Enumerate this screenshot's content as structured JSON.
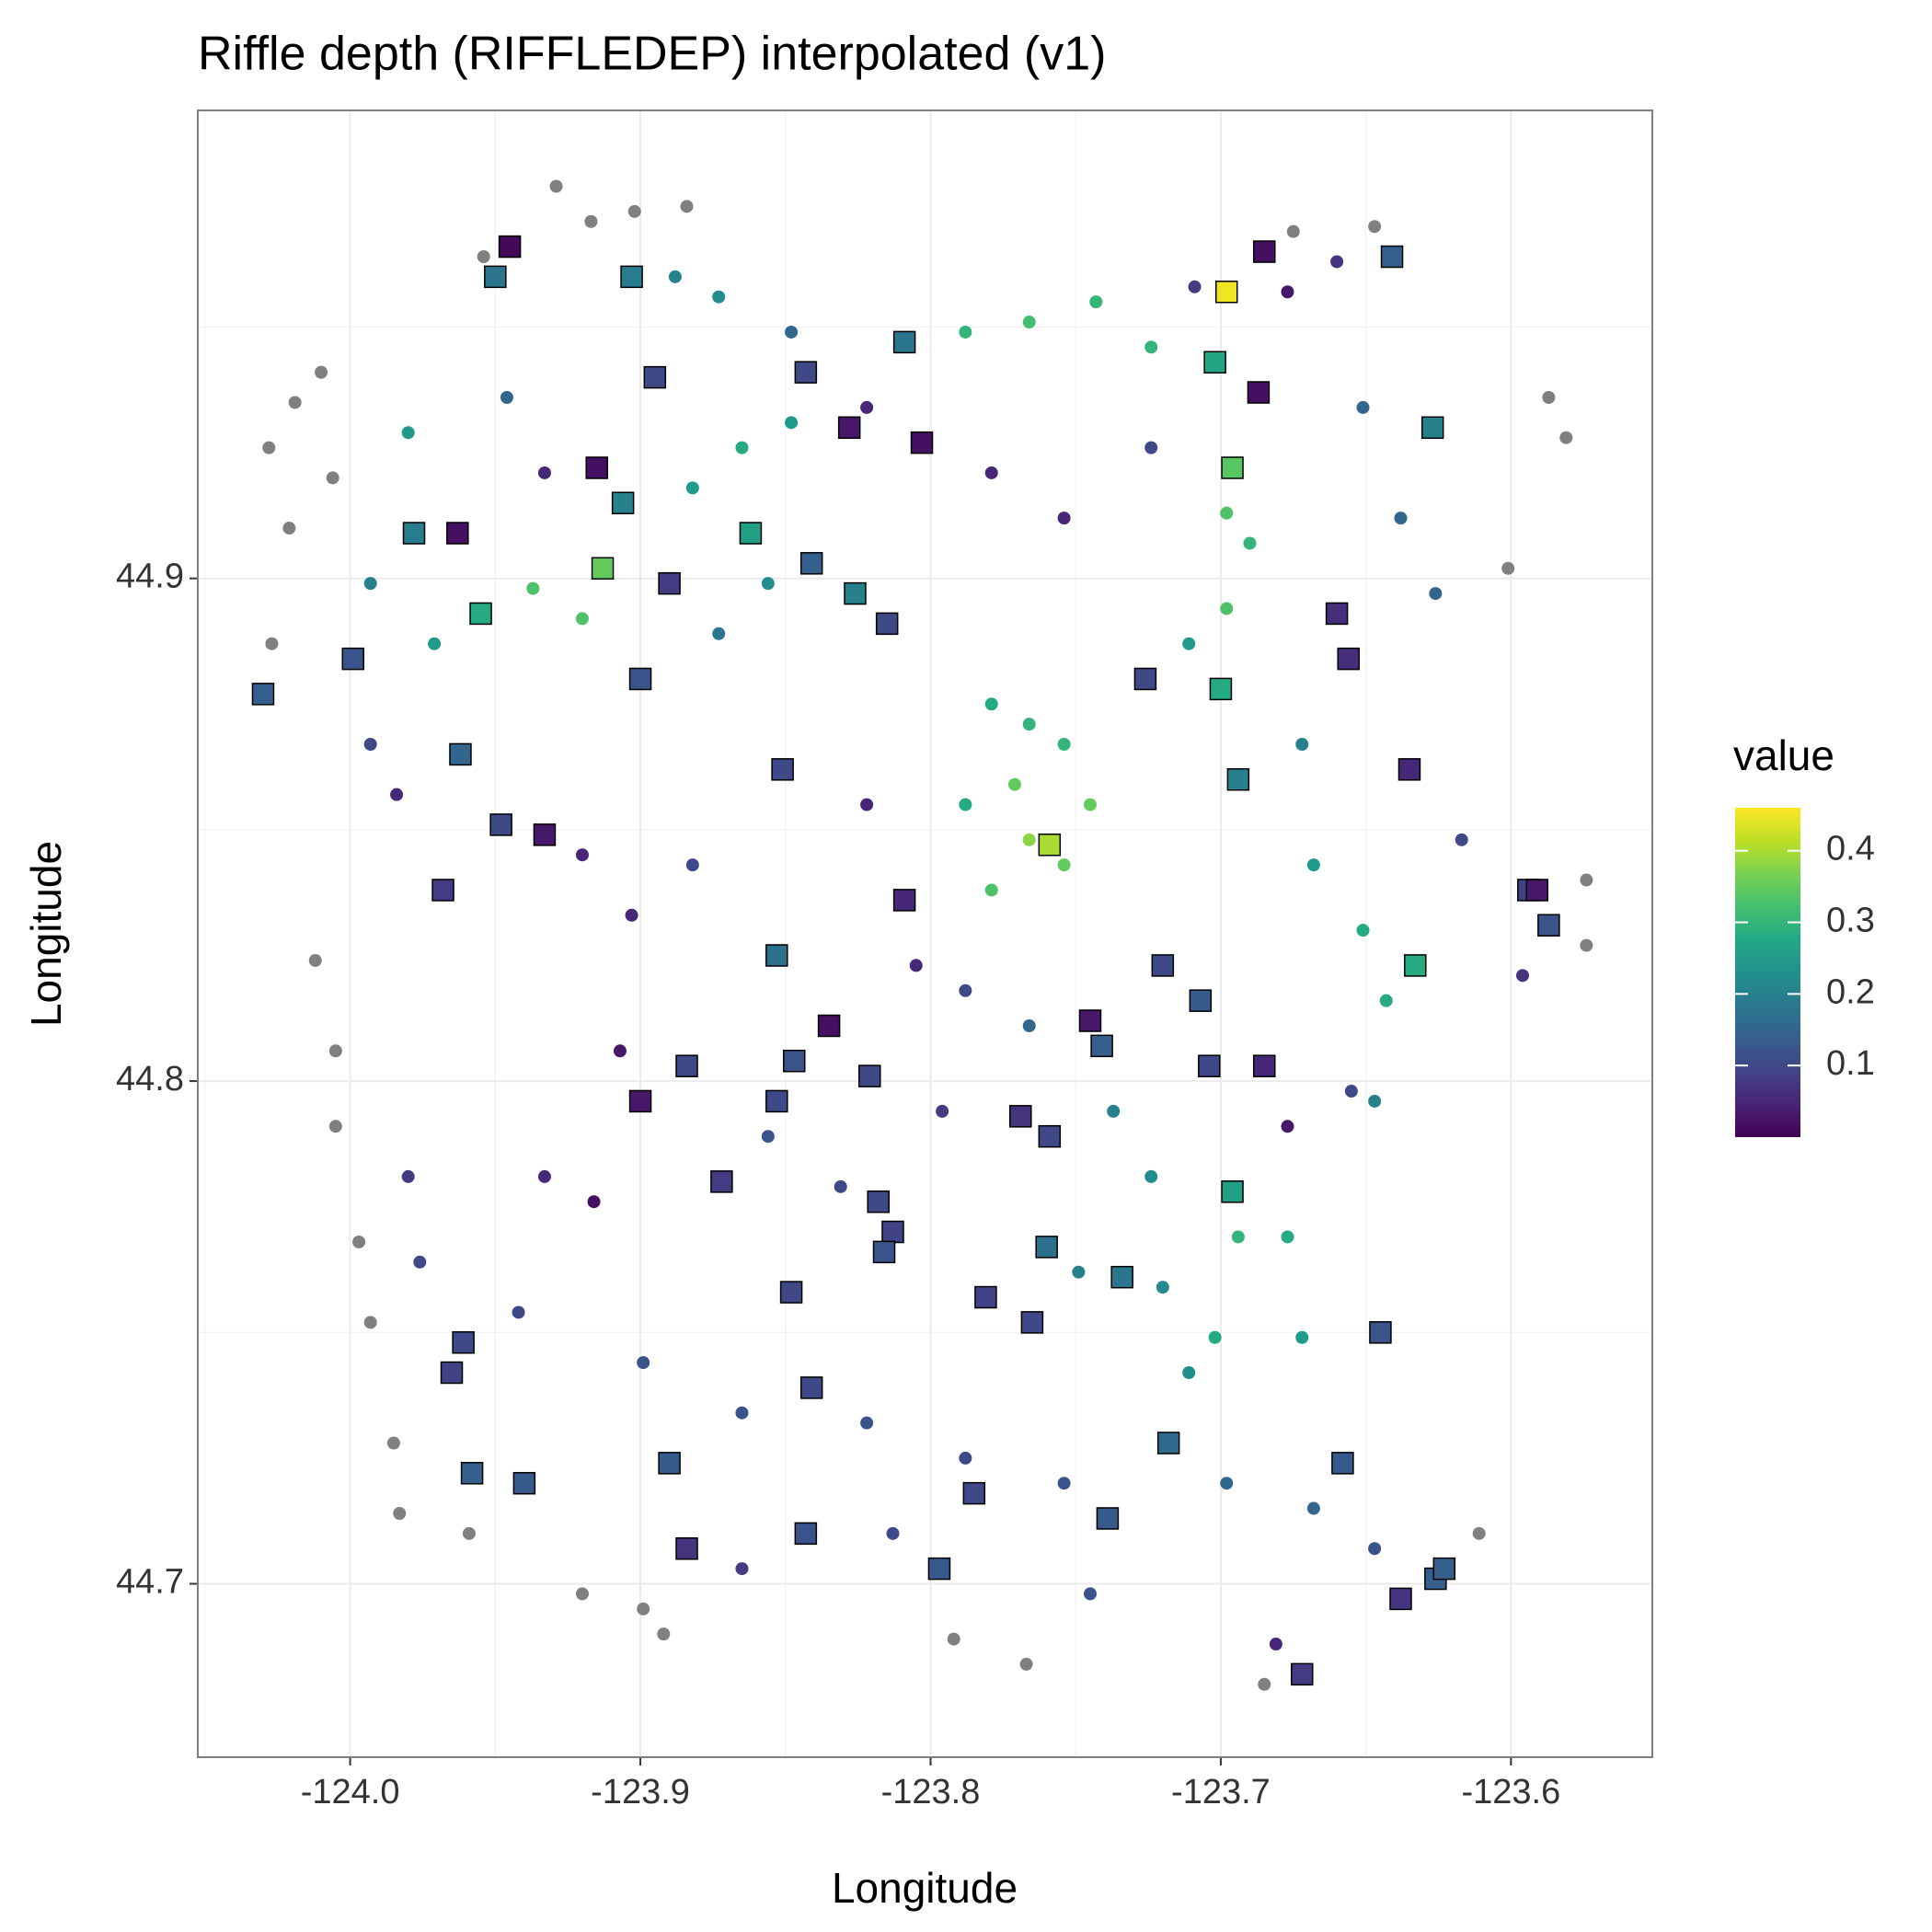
{
  "chart_data": {
    "type": "scatter",
    "title": "Riffle depth (RIFFLEDEP) interpolated (v1)",
    "x_label": "Longitude",
    "y_label": "Longitude",
    "xlim": [
      -124.0525,
      -123.5513
    ],
    "ylim": [
      44.6655,
      44.9931
    ],
    "xticks": [
      {
        "value": -124,
        "label": "-124.0"
      },
      -123.9,
      -123.8,
      -123.7,
      -123.6
    ],
    "yticks": [
      44.7,
      44.8,
      44.9
    ],
    "grid": true,
    "colormap": "viridis",
    "na_color": "#808080",
    "colorlim": [
      0,
      0.46
    ],
    "colorbar_title": "value",
    "colorbar_ticks": [
      0.1,
      0.2,
      0.3,
      0.4
    ],
    "points": {
      "x": [
        -123.929,
        -123.917,
        -123.902,
        -123.884,
        -123.954,
        -124.01,
        -124.019,
        -124.028,
        -124.006,
        -124.021,
        -124.027,
        -124.012,
        -124.005,
        -124.005,
        -123.997,
        -123.993,
        -123.985,
        -123.983,
        -123.959,
        -123.92,
        -123.899,
        -123.892,
        -123.792,
        -123.767,
        -123.675,
        -123.647,
        -123.611,
        -123.587,
        -123.581,
        -123.601,
        -123.574,
        -123.574,
        -123.685,
        -123.888,
        -123.873,
        -123.848,
        -123.788,
        -123.766,
        -123.743,
        -123.724,
        -123.709,
        -123.677,
        -123.66,
        -123.848,
        -123.865,
        -123.882,
        -123.822,
        -123.779,
        -123.754,
        -123.724,
        -123.698,
        -123.69,
        -123.651,
        -123.638,
        -123.626,
        -123.937,
        -123.92,
        -123.971,
        -123.993,
        -123.98,
        -123.946,
        -123.933,
        -123.856,
        -123.873,
        -123.779,
        -123.766,
        -123.754,
        -123.771,
        -123.745,
        -123.766,
        -123.779,
        -123.754,
        -123.788,
        -123.698,
        -123.711,
        -123.672,
        -123.668,
        -123.651,
        -123.643,
        -123.617,
        -123.596,
        -123.993,
        -123.984,
        -123.92,
        -123.903,
        -123.882,
        -123.822,
        -123.805,
        -123.788,
        -123.766,
        -123.737,
        -123.724,
        -123.694,
        -123.677,
        -123.702,
        -123.711,
        -123.672,
        -123.749,
        -123.72,
        -123.933,
        -123.916,
        -123.907,
        -123.856,
        -123.831,
        -123.98,
        -123.976,
        -123.942,
        -123.899,
        -123.865,
        -123.822,
        -123.788,
        -123.754,
        -123.698,
        -123.668,
        -123.647,
        -123.681,
        -123.745,
        -123.813,
        -123.865,
        -123.655,
        -123.647,
        -123.677,
        -123.796
      ],
      "y": [
        44.978,
        44.971,
        44.973,
        44.974,
        44.964,
        44.941,
        44.935,
        44.926,
        44.92,
        44.91,
        44.887,
        44.824,
        44.806,
        44.791,
        44.768,
        44.752,
        44.728,
        44.714,
        44.71,
        44.698,
        44.695,
        44.69,
        44.689,
        44.684,
        44.969,
        44.97,
        44.71,
        44.936,
        44.928,
        44.902,
        44.84,
        44.827,
        44.68,
        44.96,
        44.956,
        44.949,
        44.949,
        44.951,
        44.955,
        44.946,
        44.958,
        44.957,
        44.963,
        44.931,
        44.926,
        44.918,
        44.934,
        44.921,
        44.912,
        44.926,
        44.913,
        44.907,
        44.934,
        44.912,
        44.897,
        44.898,
        44.892,
        44.887,
        44.899,
        44.929,
        44.936,
        44.921,
        44.899,
        44.889,
        44.875,
        44.871,
        44.867,
        44.859,
        44.855,
        44.848,
        44.838,
        44.843,
        44.855,
        44.894,
        44.887,
        44.867,
        44.843,
        44.83,
        44.816,
        44.848,
        44.821,
        44.867,
        44.857,
        44.845,
        44.833,
        44.843,
        44.855,
        44.823,
        44.818,
        44.811,
        44.794,
        44.781,
        44.769,
        44.769,
        44.749,
        44.742,
        44.749,
        44.762,
        44.759,
        44.781,
        44.776,
        44.806,
        44.789,
        44.779,
        44.781,
        44.764,
        44.754,
        44.744,
        44.734,
        44.732,
        44.725,
        44.72,
        44.72,
        44.715,
        44.707,
        44.688,
        44.698,
        44.71,
        44.703,
        44.798,
        44.796,
        44.791,
        44.794
      ],
      "values": [
        null,
        null,
        null,
        null,
        null,
        null,
        null,
        null,
        null,
        null,
        null,
        null,
        null,
        null,
        null,
        null,
        null,
        null,
        null,
        null,
        null,
        null,
        null,
        null,
        null,
        null,
        null,
        null,
        null,
        null,
        null,
        null,
        null,
        0.2,
        0.22,
        0.15,
        0.3,
        0.32,
        0.3,
        0.3,
        0.08,
        0.03,
        0.07,
        0.25,
        0.28,
        0.25,
        0.05,
        0.05,
        0.05,
        0.1,
        0.33,
        0.3,
        0.15,
        0.15,
        0.15,
        0.33,
        0.33,
        0.25,
        0.2,
        0.25,
        0.15,
        0.05,
        0.22,
        0.18,
        0.28,
        0.3,
        0.3,
        0.35,
        0.35,
        0.38,
        0.33,
        0.35,
        0.28,
        0.33,
        0.25,
        0.2,
        0.25,
        0.28,
        0.28,
        0.1,
        0.07,
        0.1,
        0.05,
        0.05,
        0.05,
        0.1,
        0.05,
        0.05,
        0.1,
        0.15,
        0.2,
        0.22,
        0.3,
        0.28,
        0.28,
        0.22,
        0.25,
        0.2,
        0.22,
        0.05,
        0.02,
        0.03,
        0.12,
        0.1,
        0.08,
        0.1,
        0.1,
        0.12,
        0.12,
        0.12,
        0.1,
        0.12,
        0.15,
        0.15,
        0.12,
        0.05,
        0.12,
        0.1,
        0.08,
        0.1,
        0.2,
        0.03,
        0.08
      ]
    },
    "sites": {
      "x": [
        -123.945,
        -123.95,
        -123.903,
        -123.895,
        -123.843,
        -123.809,
        -123.828,
        -123.803,
        -123.915,
        -123.906,
        -123.862,
        -123.978,
        -123.963,
        -123.913,
        -123.89,
        -123.841,
        -123.826,
        -123.815,
        -123.955,
        -123.999,
        -124.03,
        -123.9,
        -123.962,
        -123.851,
        -123.948,
        -123.933,
        -123.968,
        -123.809,
        -123.853,
        -123.835,
        -123.847,
        -123.884,
        -123.9,
        -123.853,
        -123.821,
        -123.769,
        -123.759,
        -123.872,
        -123.818,
        -123.813,
        -123.816,
        -123.848,
        -123.781,
        -123.765,
        -123.76,
        -123.734,
        -123.961,
        -123.965,
        -123.841,
        -123.958,
        -123.94,
        -123.89,
        -123.884,
        -123.843,
        -123.797,
        -123.785,
        -123.739,
        -123.718,
        -123.658,
        -123.645,
        -123.638,
        -123.626,
        -123.623,
        -123.672,
        -123.696,
        -123.685,
        -123.704,
        -123.707,
        -123.72,
        -123.741,
        -123.745,
        -123.759,
        -123.694,
        -123.7,
        -123.726,
        -123.656,
        -123.66,
        -123.635,
        -123.633,
        -123.594,
        -123.591,
        -123.587,
        -123.627,
        -123.687,
        -123.702,
        -123.696,
        -123.698,
        -123.685,
        -123.641
      ],
      "y": [
        44.966,
        44.96,
        44.96,
        44.94,
        44.941,
        44.947,
        44.93,
        44.927,
        44.922,
        44.915,
        44.909,
        44.909,
        44.909,
        44.902,
        44.899,
        44.903,
        44.897,
        44.891,
        44.893,
        44.884,
        44.877,
        44.88,
        44.865,
        44.862,
        44.851,
        44.849,
        44.838,
        44.836,
        44.825,
        44.811,
        44.804,
        44.803,
        44.796,
        44.796,
        44.801,
        44.793,
        44.789,
        44.78,
        44.776,
        44.77,
        44.766,
        44.758,
        44.757,
        44.752,
        44.767,
        44.761,
        44.748,
        44.742,
        44.739,
        44.722,
        44.72,
        44.724,
        44.707,
        44.71,
        44.703,
        44.718,
        44.713,
        44.728,
        44.724,
        44.75,
        44.697,
        44.701,
        44.703,
        44.682,
        44.778,
        44.803,
        44.803,
        44.816,
        44.823,
        44.807,
        44.812,
        44.847,
        44.86,
        44.878,
        44.88,
        44.884,
        44.893,
        44.862,
        44.823,
        44.838,
        44.838,
        44.831,
        44.93,
        44.937,
        44.943,
        44.922,
        44.957,
        44.965,
        44.964
      ],
      "values": [
        0.01,
        0.18,
        0.19,
        0.1,
        0.1,
        0.18,
        0.03,
        0.02,
        0.02,
        0.2,
        0.26,
        0.19,
        0.02,
        0.35,
        0.08,
        0.14,
        0.2,
        0.1,
        0.28,
        0.12,
        0.14,
        0.12,
        0.15,
        0.1,
        0.1,
        0.03,
        0.08,
        0.05,
        0.17,
        0.02,
        0.12,
        0.1,
        0.03,
        0.1,
        0.1,
        0.07,
        0.1,
        0.08,
        0.1,
        0.09,
        0.12,
        0.1,
        0.09,
        0.1,
        0.17,
        0.18,
        0.1,
        0.09,
        0.1,
        0.14,
        0.13,
        0.13,
        0.07,
        0.12,
        0.13,
        0.1,
        0.13,
        0.16,
        0.13,
        0.12,
        0.07,
        0.14,
        0.14,
        0.08,
        0.26,
        0.05,
        0.1,
        0.13,
        0.1,
        0.14,
        0.03,
        0.4,
        0.2,
        0.28,
        0.1,
        0.06,
        0.06,
        0.05,
        0.28,
        0.09,
        0.03,
        0.12,
        0.2,
        0.02,
        0.27,
        0.34,
        0.45,
        0.02,
        0.14
      ]
    }
  }
}
